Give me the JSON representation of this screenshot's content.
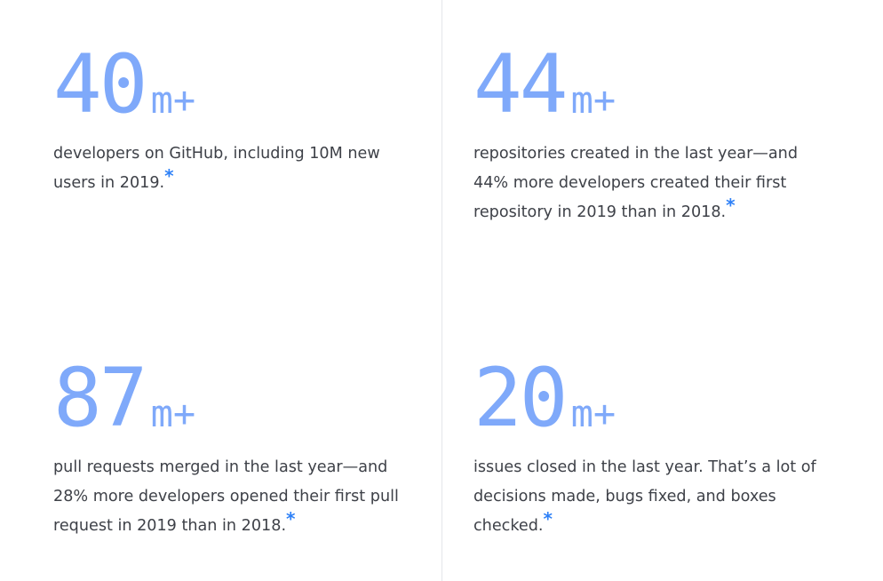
{
  "stats": [
    {
      "number": "40",
      "unit": "m+",
      "description": "developers on GitHub, including 10M new users in 2019.",
      "footnote": "*"
    },
    {
      "number": "44",
      "unit": "m+",
      "description": "repositories created in the last year—and 44% more developers created their first repository in 2019 than in 2018.",
      "footnote": "*"
    },
    {
      "number": "87",
      "unit": "m+",
      "description": "pull requests merged in the last year—and 28% more developers opened their first pull request in 2019 than in 2018.",
      "footnote": "*"
    },
    {
      "number": "20",
      "unit": "m+",
      "description": "issues closed in the last year. That’s a lot of decisions made, bugs fixed, and boxes checked.",
      "footnote": "*"
    }
  ],
  "colors": {
    "stat_number": "#7fa9fa",
    "footnote_link": "#2f81f7",
    "body_text": "#3e4148",
    "divider": "#e4e6ea"
  }
}
